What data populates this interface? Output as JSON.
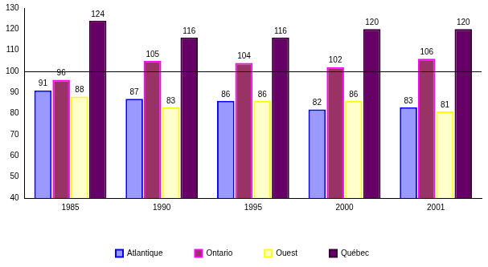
{
  "chart_data": {
    "type": "bar",
    "categories": [
      "1985",
      "1990",
      "1995",
      "2000",
      "2001"
    ],
    "series": [
      {
        "name": "Atlantique",
        "color": "#9999ff",
        "values": [
          91,
          87,
          86,
          82,
          83
        ]
      },
      {
        "name": "Ontario",
        "color": "#993366",
        "values": [
          96,
          105,
          104,
          102,
          106
        ]
      },
      {
        "name": "Ouest",
        "color": "#ffffcc",
        "values": [
          88,
          83,
          86,
          86,
          81
        ]
      },
      {
        "name": "Québec",
        "color": "#660066",
        "values": [
          124,
          116,
          116,
          120,
          120
        ]
      }
    ],
    "ylim": [
      40,
      130
    ],
    "yticks": [
      40,
      50,
      60,
      70,
      80,
      90,
      100,
      110,
      120,
      130
    ],
    "reference_line": 100,
    "grid": false,
    "legend": "bottom",
    "data_labels": true
  }
}
